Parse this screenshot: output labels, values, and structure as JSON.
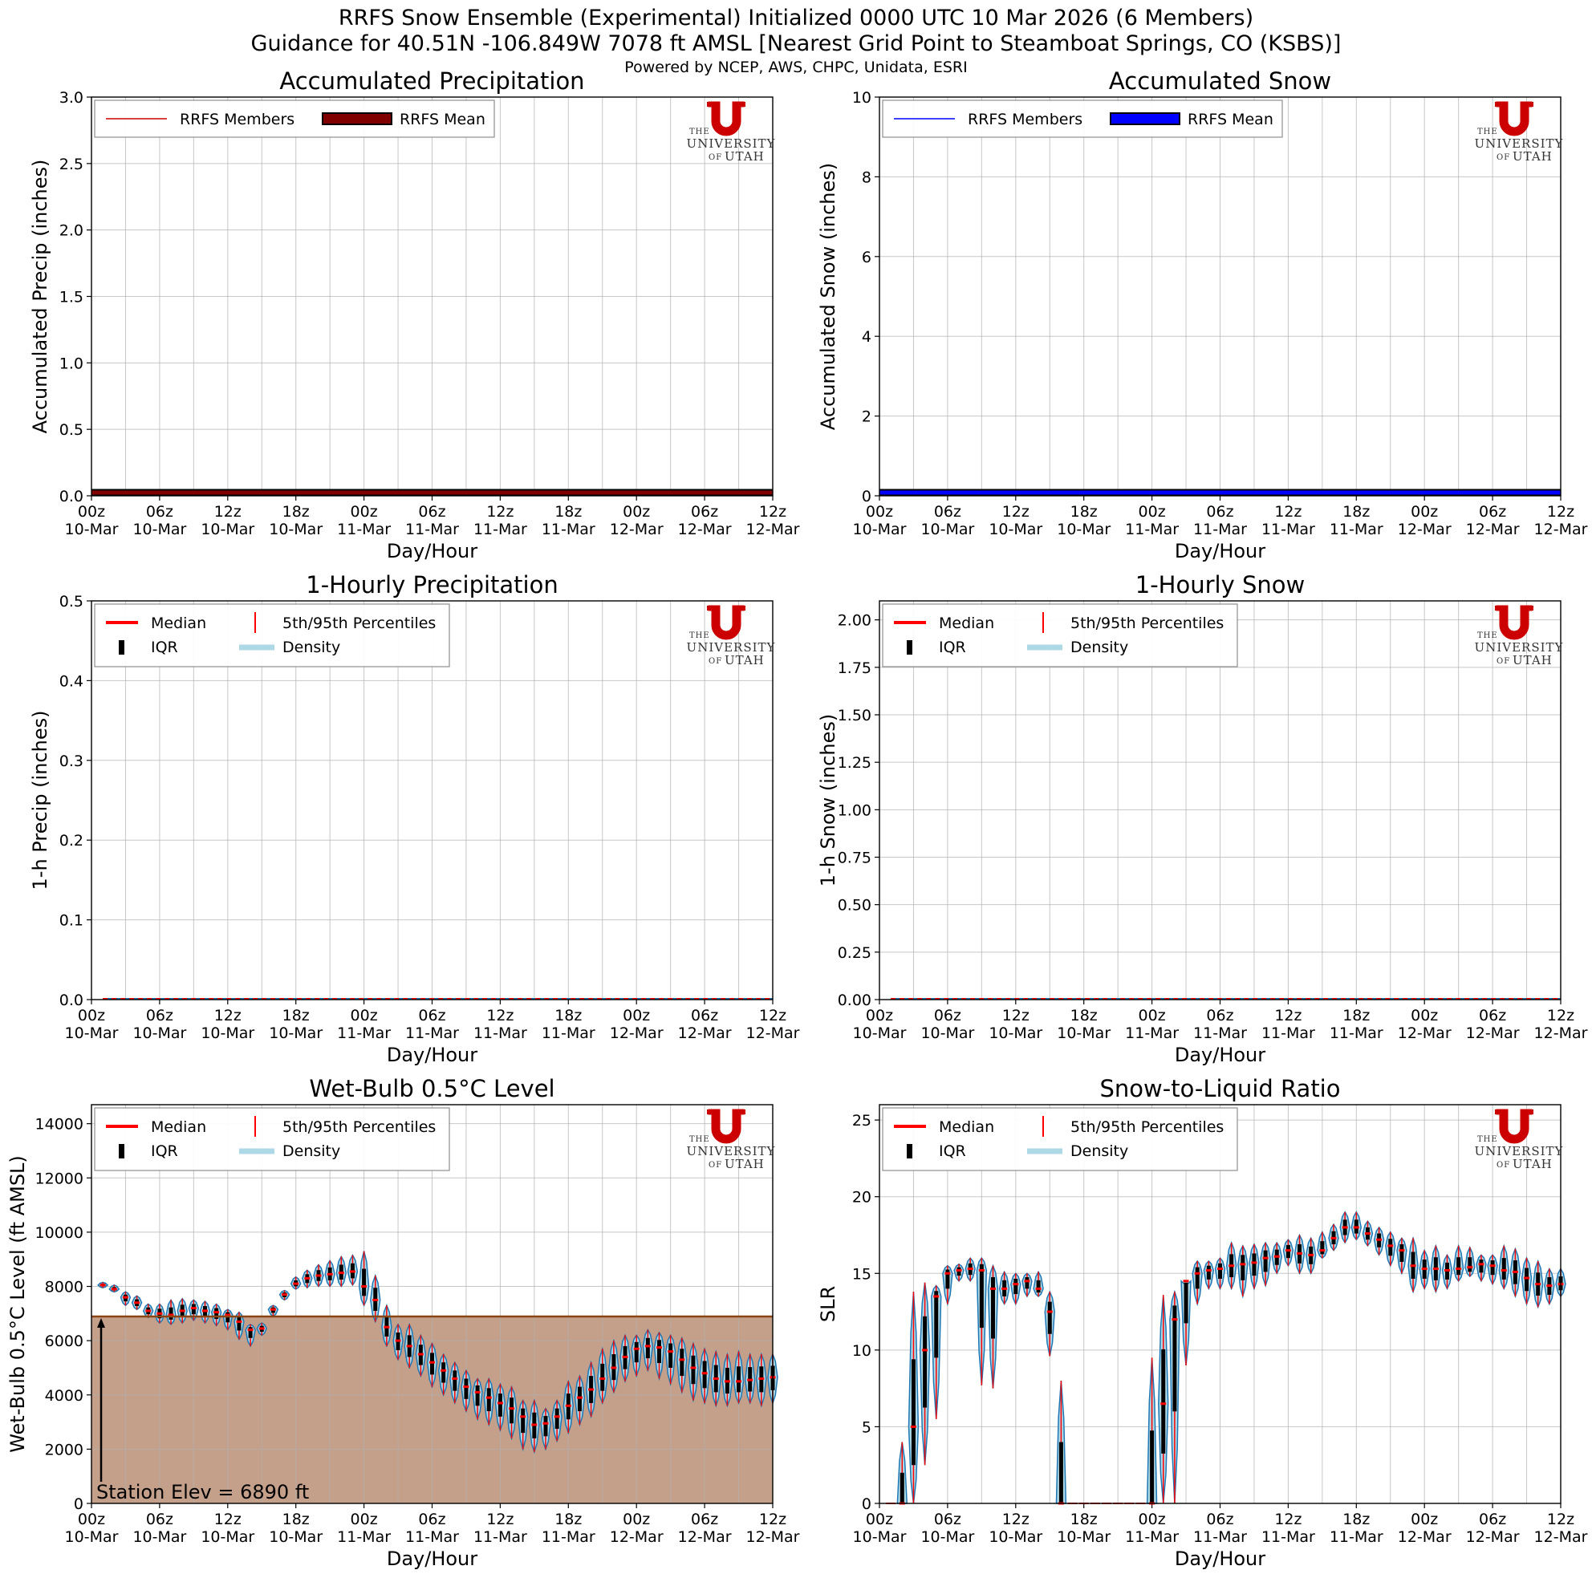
{
  "figure": {
    "title_line1": "RRFS Snow Ensemble (Experimental) Initialized 0000 UTC 10 Mar 2026 (6 Members)",
    "title_line2": "Guidance for 40.51N -106.849W 7078 ft AMSL [Nearest Grid Point to Steamboat Springs, CO (KSBS)]",
    "subtitle": "Powered by NCEP, AWS, CHPC, Unidata, ESRI"
  },
  "logo": {
    "line1": "THE",
    "line2": "UNIVERSITY",
    "line3a": "OF",
    "line3b": "UTAH",
    "colors": {
      "red": "#cc0000"
    }
  },
  "time_axis": {
    "hours": [
      "00z",
      "06z",
      "12z",
      "18z",
      "00z",
      "06z",
      "12z",
      "18z",
      "00z",
      "06z",
      "12z"
    ],
    "days": [
      "10-Mar",
      "10-Mar",
      "10-Mar",
      "10-Mar",
      "11-Mar",
      "11-Mar",
      "11-Mar",
      "11-Mar",
      "12-Mar",
      "12-Mar",
      "12-Mar"
    ],
    "xlabel": "Day/Hour",
    "range_hours": [
      0,
      60
    ]
  },
  "station": {
    "label": "Station Elev = 6890 ft",
    "elevation_ft": 6890,
    "fill_color": "#c4a08a",
    "line_color": "#8b4513"
  },
  "colors": {
    "members_precip": "#cc0000",
    "mean_precip": "#800000",
    "members_snow": "#0000ff",
    "mean_snow": "#0000ff",
    "median": "#ff0000",
    "density": "#add8e6",
    "density_edge": "#1f77b4",
    "iqr": "#000000"
  },
  "chart_data": [
    {
      "id": "acc_precip",
      "type": "line",
      "title": "Accumulated Precipitation",
      "xlabel": "Day/Hour",
      "ylabel": "Accumulated Precip (inches)",
      "ylim": [
        0,
        3.0
      ],
      "yticks": [
        "0.0",
        "0.5",
        "1.0",
        "1.5",
        "2.0",
        "2.5",
        "3.0"
      ],
      "grid": true,
      "legend": {
        "position": "top-left",
        "entries": [
          "RRFS Members",
          "RRFS Mean"
        ]
      },
      "series": [
        {
          "name": "RRFS Members",
          "x": [
            0,
            60
          ],
          "values": [
            0.0,
            0.0
          ]
        },
        {
          "name": "RRFS Mean",
          "x": [
            0,
            60
          ],
          "values": [
            0.0,
            0.0
          ]
        }
      ]
    },
    {
      "id": "acc_snow",
      "type": "line",
      "title": "Accumulated Snow",
      "xlabel": "Day/Hour",
      "ylabel": "Accumulated Snow (inches)",
      "ylim": [
        0,
        10
      ],
      "yticks": [
        "0",
        "2",
        "4",
        "6",
        "8",
        "10"
      ],
      "grid": true,
      "legend": {
        "position": "top-left",
        "entries": [
          "RRFS Members",
          "RRFS Mean"
        ]
      },
      "series": [
        {
          "name": "RRFS Members",
          "x": [
            0,
            60
          ],
          "values": [
            0.0,
            0.0
          ]
        },
        {
          "name": "RRFS Mean",
          "x": [
            0,
            60
          ],
          "values": [
            0.0,
            0.0
          ]
        }
      ]
    },
    {
      "id": "hr_precip",
      "type": "violin",
      "title": "1-Hourly Precipitation",
      "xlabel": "Day/Hour",
      "ylabel": "1-h Precip (inches)",
      "ylim": [
        0,
        0.5
      ],
      "yticks": [
        "0.0",
        "0.1",
        "0.2",
        "0.3",
        "0.4",
        "0.5"
      ],
      "grid": true,
      "legend": {
        "position": "top-left",
        "entries": [
          "Median",
          "5th/95th Percentiles",
          "IQR",
          "Density"
        ]
      },
      "hours": [
        1,
        60
      ],
      "median_all": 0.0
    },
    {
      "id": "hr_snow",
      "type": "violin",
      "title": "1-Hourly Snow",
      "xlabel": "Day/Hour",
      "ylabel": "1-h Snow (inches)",
      "ylim": [
        0,
        2.1
      ],
      "yticks": [
        "0.00",
        "0.25",
        "0.50",
        "0.75",
        "1.00",
        "1.25",
        "1.50",
        "1.75",
        "2.00"
      ],
      "grid": true,
      "legend": {
        "position": "top-left",
        "entries": [
          "Median",
          "5th/95th Percentiles",
          "IQR",
          "Density"
        ]
      },
      "hours": [
        1,
        60
      ],
      "median_all": 0.0
    },
    {
      "id": "wetbulb",
      "type": "violin",
      "title": "Wet-Bulb 0.5°C Level",
      "xlabel": "Day/Hour",
      "ylabel": "Wet-Bulb 0.5°C Level (ft AMSL)",
      "ylim": [
        0,
        14700
      ],
      "yticks": [
        "0",
        "2000",
        "4000",
        "6000",
        "8000",
        "10000",
        "12000",
        "14000"
      ],
      "grid": true,
      "legend": {
        "position": "top-left",
        "entries": [
          "Median",
          "5th/95th Percentiles",
          "IQR",
          "Density"
        ]
      },
      "hours": [
        1,
        2,
        3,
        4,
        5,
        6,
        7,
        8,
        9,
        10,
        11,
        12,
        13,
        14,
        15,
        16,
        17,
        18,
        19,
        20,
        21,
        22,
        23,
        24,
        25,
        26,
        27,
        28,
        29,
        30,
        31,
        32,
        33,
        34,
        35,
        36,
        37,
        38,
        39,
        40,
        41,
        42,
        43,
        44,
        45,
        46,
        47,
        48,
        49,
        50,
        51,
        52,
        53,
        54,
        55,
        56,
        57,
        58,
        59,
        60
      ],
      "median": [
        8050,
        7900,
        7600,
        7400,
        7100,
        7000,
        6950,
        7100,
        7200,
        7100,
        7050,
        6950,
        6700,
        6400,
        6450,
        7150,
        7700,
        8100,
        8300,
        8400,
        8450,
        8500,
        8550,
        8000,
        7500,
        6500,
        6000,
        5800,
        5500,
        5200,
        4900,
        4600,
        4300,
        4100,
        3900,
        3700,
        3500,
        3200,
        2900,
        2950,
        3200,
        3600,
        3900,
        4200,
        4600,
        5000,
        5400,
        5700,
        5800,
        5750,
        5600,
        5300,
        5000,
        4800,
        4600,
        4500,
        4500,
        4550,
        4600,
        4650
      ],
      "p05": [
        7950,
        7800,
        7300,
        7150,
        6850,
        6650,
        6600,
        6650,
        6750,
        6650,
        6550,
        6400,
        6050,
        5800,
        6200,
        6900,
        7500,
        7900,
        7950,
        8000,
        8000,
        8000,
        8050,
        7300,
        6700,
        5800,
        5300,
        5000,
        4700,
        4300,
        4000,
        3700,
        3400,
        3100,
        2900,
        2700,
        2400,
        2000,
        1900,
        2000,
        2300,
        2600,
        2900,
        3200,
        3700,
        4100,
        4500,
        4700,
        4900,
        4600,
        4400,
        4100,
        3800,
        3700,
        3600,
        3600,
        3700,
        3700,
        3600,
        3700
      ],
      "p95": [
        8150,
        8050,
        7800,
        7650,
        7350,
        7350,
        7500,
        7550,
        7500,
        7450,
        7350,
        7150,
        7050,
        6600,
        6650,
        7300,
        7850,
        8350,
        8600,
        8800,
        8950,
        9100,
        9150,
        9300,
        8400,
        7300,
        6600,
        6600,
        6200,
        5900,
        5500,
        5200,
        4900,
        4600,
        4600,
        4400,
        4300,
        3800,
        3800,
        3500,
        3800,
        4500,
        4700,
        5200,
        5700,
        6000,
        6200,
        6200,
        6400,
        6300,
        6200,
        6100,
        5900,
        5700,
        5600,
        5500,
        5600,
        5500,
        5500,
        5500
      ]
    },
    {
      "id": "slr",
      "type": "violin",
      "title": "Snow-to-Liquid Ratio",
      "xlabel": "Day/Hour",
      "ylabel": "SLR",
      "ylim": [
        0,
        26
      ],
      "yticks": [
        "0",
        "5",
        "10",
        "15",
        "20",
        "25"
      ],
      "grid": true,
      "legend": {
        "position": "top-left",
        "entries": [
          "Median",
          "5th/95th Percentiles",
          "IQR",
          "Density"
        ]
      },
      "hours": [
        1,
        2,
        3,
        4,
        5,
        6,
        7,
        8,
        9,
        10,
        11,
        12,
        13,
        14,
        15,
        16,
        17,
        18,
        19,
        20,
        21,
        22,
        23,
        24,
        25,
        26,
        27,
        28,
        29,
        30,
        31,
        32,
        33,
        34,
        35,
        36,
        37,
        38,
        39,
        40,
        41,
        42,
        43,
        44,
        45,
        46,
        47,
        48,
        49,
        50,
        51,
        52,
        53,
        54,
        55,
        56,
        57,
        58,
        59,
        60
      ],
      "median": [
        0,
        0,
        5,
        10,
        13.5,
        15,
        15.2,
        15.3,
        15.2,
        14,
        14,
        14.3,
        14.5,
        14,
        12.5,
        0,
        0,
        0,
        0,
        0,
        0,
        0,
        0,
        0,
        6.5,
        12,
        14.5,
        15,
        15.2,
        15.3,
        15.5,
        15.6,
        15.7,
        16,
        16.1,
        16.5,
        16.3,
        16.2,
        16.5,
        17.3,
        18,
        18,
        17.6,
        17.2,
        16.8,
        16.5,
        15.5,
        15.3,
        15.3,
        15.2,
        15.3,
        15.4,
        15.6,
        15.5,
        15.2,
        15.1,
        14.7,
        14.3,
        14.2,
        14.3
      ],
      "p05": [
        0,
        0,
        0,
        2.5,
        5.5,
        13,
        14.5,
        14.5,
        7.7,
        7.5,
        13,
        13,
        13.5,
        13.5,
        9.6,
        0,
        0,
        0,
        0,
        0,
        0,
        0,
        0,
        0,
        0,
        0,
        9,
        13,
        14,
        14,
        14,
        13.5,
        14,
        14.2,
        15,
        15.5,
        15,
        15,
        16,
        16.5,
        17,
        17.2,
        16.8,
        16.2,
        15.5,
        15,
        13.8,
        14,
        13.8,
        14,
        14.5,
        14.8,
        14.5,
        14.3,
        14,
        13.5,
        13,
        12.8,
        13,
        13.5
      ],
      "p95": [
        0,
        4,
        13.8,
        14.4,
        14.2,
        15.5,
        15.6,
        16,
        16,
        15.5,
        15.1,
        15,
        15,
        15.1,
        13.8,
        8,
        0,
        0,
        0,
        0,
        0,
        0,
        0,
        9.5,
        13.6,
        13.8,
        14.3,
        15.8,
        15.8,
        16,
        17,
        16.8,
        16.9,
        17,
        17,
        17.2,
        17.5,
        17.3,
        17.7,
        18.2,
        19,
        19,
        18.4,
        18,
        17.7,
        17.3,
        17.3,
        16.5,
        16.8,
        16.2,
        16.8,
        16.7,
        16.2,
        16.2,
        16.8,
        16.6,
        16,
        15.8,
        15.3,
        15.3
      ]
    }
  ]
}
